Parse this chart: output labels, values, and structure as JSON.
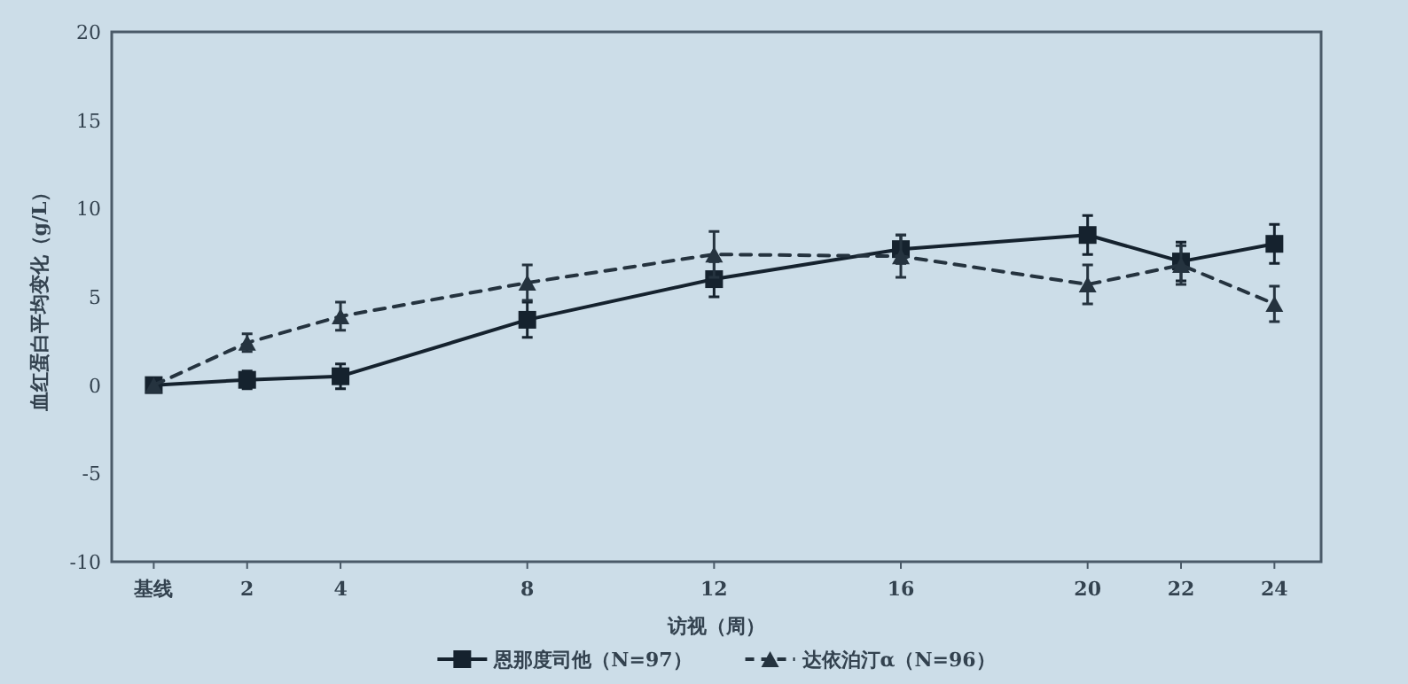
{
  "chart_data": {
    "type": "line",
    "xlabel": "访视（周）",
    "ylabel": "血红蛋白平均变化（g/L）",
    "x": [
      0,
      2,
      4,
      8,
      12,
      16,
      20,
      22,
      24
    ],
    "xlim": [
      -0.9,
      25
    ],
    "xticks": [
      {
        "value": 0,
        "label": "基线"
      },
      2,
      4,
      8,
      12,
      16,
      20,
      22,
      24
    ],
    "ylim": [
      -10,
      20
    ],
    "yticks": [
      -10,
      -5,
      0,
      5,
      10,
      15,
      20
    ],
    "grid": false,
    "legend": "bottom",
    "series": [
      {
        "name": "恩那度司他（N=97）",
        "color": "#15222e",
        "marker": "square",
        "line_style": "solid",
        "values": [
          0,
          0.3,
          0.5,
          3.7,
          6.0,
          7.7,
          8.5,
          7.0,
          8.0
        ],
        "errors": [
          null,
          0.5,
          0.7,
          1.0,
          1.0,
          0.8,
          1.1,
          1.1,
          1.1
        ]
      },
      {
        "name": "达依泊汀α（N=96）",
        "color": "#25333f",
        "marker": "triangle",
        "line_style": "dashed",
        "values": [
          0,
          2.4,
          3.9,
          5.8,
          7.4,
          7.3,
          5.7,
          6.8,
          4.6
        ],
        "errors": [
          null,
          0.5,
          0.8,
          1.0,
          1.3,
          1.2,
          1.1,
          1.1,
          1.0
        ]
      }
    ]
  }
}
